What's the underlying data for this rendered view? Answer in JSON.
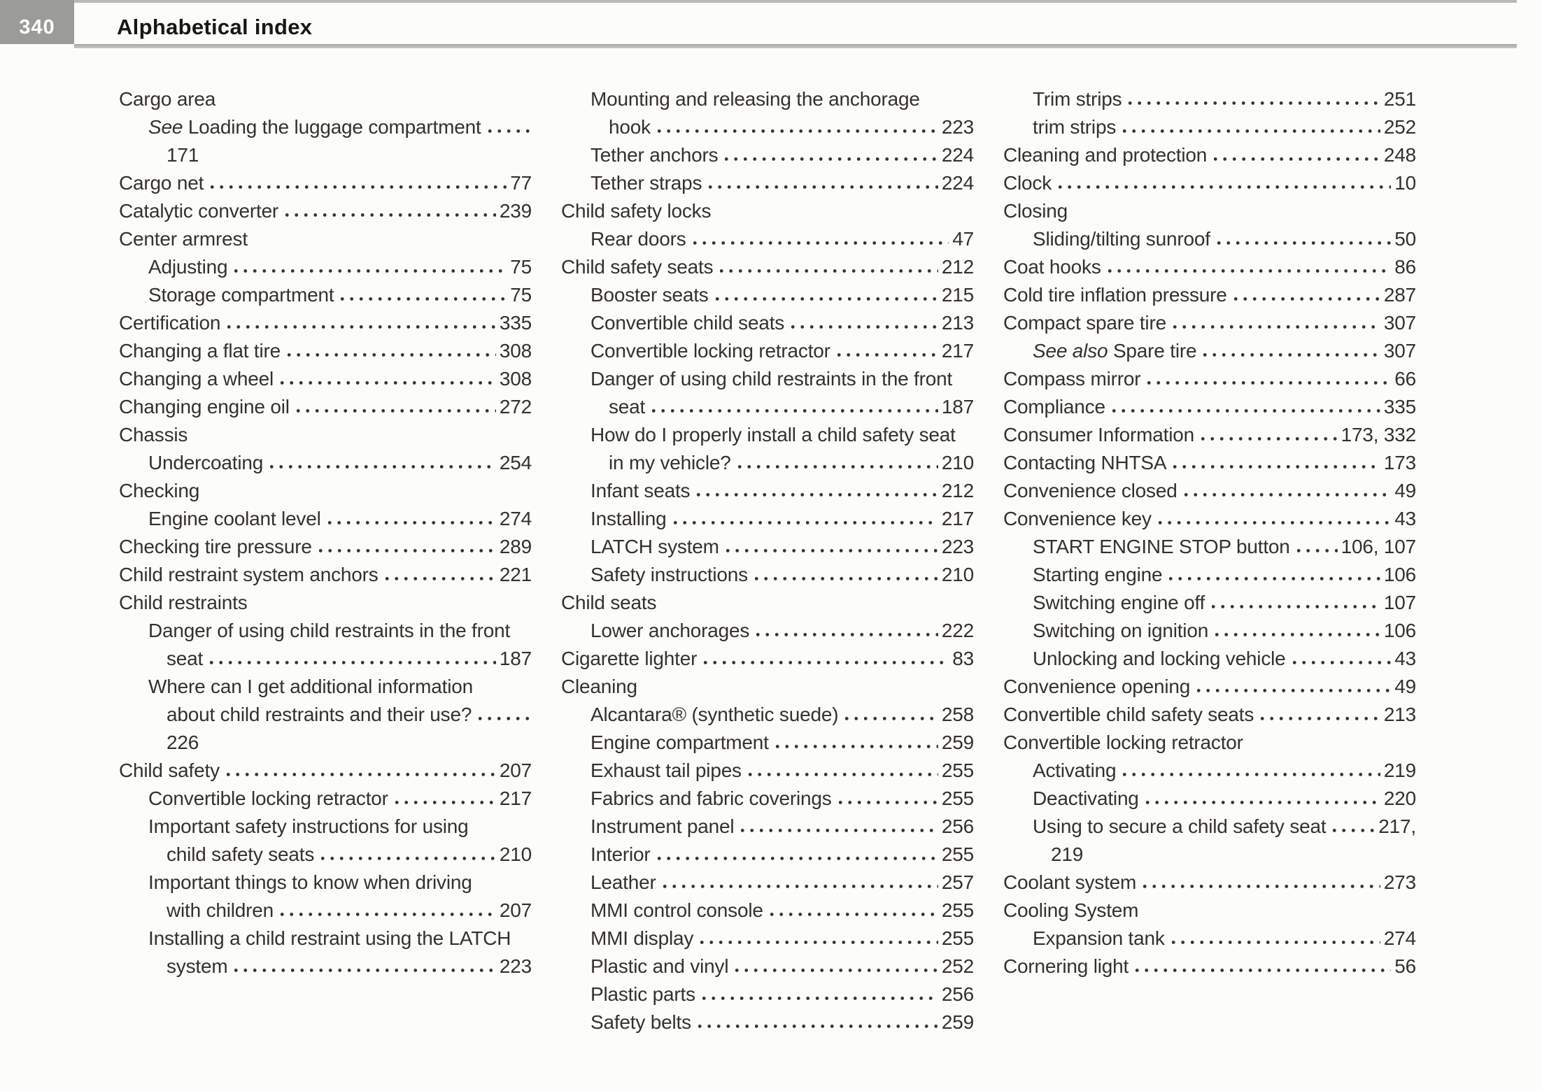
{
  "header": {
    "page_number": "340",
    "title": "Alphabetical index"
  },
  "colors": {
    "page_number_box": "#9b9b99",
    "header_rule": "#a5a5a3",
    "top_rule": "#b9b9b7",
    "text": "#35312d"
  },
  "index": {
    "columns": [
      {
        "lines": [
          {
            "indent": 0,
            "text": "Cargo area"
          },
          {
            "indent": 1,
            "italic": "See",
            "text": " Loading the luggage compartment",
            "dots": true
          },
          {
            "indent": 2,
            "text": "171"
          },
          {
            "indent": 0,
            "text": "Cargo net",
            "dots": true,
            "page": "77"
          },
          {
            "indent": 0,
            "text": "Catalytic converter",
            "dots": true,
            "page": "239"
          },
          {
            "indent": 0,
            "text": "Center armrest"
          },
          {
            "indent": 1,
            "text": "Adjusting",
            "dots": true,
            "page": "75"
          },
          {
            "indent": 1,
            "text": "Storage compartment",
            "dots": true,
            "page": "75"
          },
          {
            "indent": 0,
            "text": "Certification",
            "dots": true,
            "page": "335"
          },
          {
            "indent": 0,
            "text": "Changing a flat tire",
            "dots": true,
            "page": "308"
          },
          {
            "indent": 0,
            "text": "Changing a wheel",
            "dots": true,
            "page": "308"
          },
          {
            "indent": 0,
            "text": "Changing engine oil",
            "dots": true,
            "page": "272"
          },
          {
            "indent": 0,
            "text": "Chassis"
          },
          {
            "indent": 1,
            "text": "Undercoating",
            "dots": true,
            "page": "254"
          },
          {
            "indent": 0,
            "text": "Checking"
          },
          {
            "indent": 1,
            "text": "Engine coolant level",
            "dots": true,
            "page": "274"
          },
          {
            "indent": 0,
            "text": "Checking tire pressure",
            "dots": true,
            "page": "289"
          },
          {
            "indent": 0,
            "text": "Child restraint system anchors",
            "dots": true,
            "page": "221"
          },
          {
            "indent": 0,
            "text": "Child restraints"
          },
          {
            "indent": 1,
            "text": "Danger of using child restraints in the front"
          },
          {
            "indent": 2,
            "text": "seat",
            "dots": true,
            "page": "187"
          },
          {
            "indent": 1,
            "text": "Where can I get additional information"
          },
          {
            "indent": 2,
            "text": "about child restraints and their use?",
            "dots": true
          },
          {
            "indent": 2,
            "text": "226"
          },
          {
            "indent": 0,
            "text": "Child safety",
            "dots": true,
            "page": "207"
          },
          {
            "indent": 1,
            "text": "Convertible locking retractor",
            "dots": true,
            "page": "217"
          },
          {
            "indent": 1,
            "text": "Important safety instructions for using"
          },
          {
            "indent": 2,
            "text": "child safety seats",
            "dots": true,
            "page": "210"
          },
          {
            "indent": 1,
            "text": "Important things to know when driving"
          },
          {
            "indent": 2,
            "text": "with children",
            "dots": true,
            "page": "207"
          },
          {
            "indent": 1,
            "text": "Installing a child restraint using the LATCH"
          },
          {
            "indent": 2,
            "text": "system",
            "dots": true,
            "page": "223"
          }
        ]
      },
      {
        "lines": [
          {
            "indent": 1,
            "text": "Mounting and releasing the anchorage"
          },
          {
            "indent": 2,
            "text": "hook",
            "dots": true,
            "page": "223"
          },
          {
            "indent": 1,
            "text": "Tether anchors",
            "dots": true,
            "page": "224"
          },
          {
            "indent": 1,
            "text": "Tether straps",
            "dots": true,
            "page": "224"
          },
          {
            "indent": 0,
            "text": "Child safety locks"
          },
          {
            "indent": 1,
            "text": "Rear doors",
            "dots": true,
            "page": "47"
          },
          {
            "indent": 0,
            "text": "Child safety seats",
            "dots": true,
            "page": "212"
          },
          {
            "indent": 1,
            "text": "Booster seats",
            "dots": true,
            "page": "215"
          },
          {
            "indent": 1,
            "text": "Convertible child seats",
            "dots": true,
            "page": "213"
          },
          {
            "indent": 1,
            "text": "Convertible locking retractor",
            "dots": true,
            "page": "217"
          },
          {
            "indent": 1,
            "text": "Danger of using child restraints in the front"
          },
          {
            "indent": 2,
            "text": "seat",
            "dots": true,
            "page": "187"
          },
          {
            "indent": 1,
            "text": "How do I properly install a child safety seat"
          },
          {
            "indent": 2,
            "text": "in my vehicle?",
            "dots": true,
            "page": "210"
          },
          {
            "indent": 1,
            "text": "Infant seats",
            "dots": true,
            "page": "212"
          },
          {
            "indent": 1,
            "text": "Installing",
            "dots": true,
            "page": "217"
          },
          {
            "indent": 1,
            "text": "LATCH system",
            "dots": true,
            "page": "223"
          },
          {
            "indent": 1,
            "text": "Safety instructions",
            "dots": true,
            "page": "210"
          },
          {
            "indent": 0,
            "text": "Child seats"
          },
          {
            "indent": 1,
            "text": "Lower anchorages",
            "dots": true,
            "page": "222"
          },
          {
            "indent": 0,
            "text": "Cigarette lighter",
            "dots": true,
            "page": "83"
          },
          {
            "indent": 0,
            "text": "Cleaning"
          },
          {
            "indent": 1,
            "text": "Alcantara® (synthetic suede)",
            "dots": true,
            "page": "258"
          },
          {
            "indent": 1,
            "text": "Engine compartment",
            "dots": true,
            "page": "259"
          },
          {
            "indent": 1,
            "text": "Exhaust tail pipes",
            "dots": true,
            "page": "255"
          },
          {
            "indent": 1,
            "text": "Fabrics and fabric coverings",
            "dots": true,
            "page": "255"
          },
          {
            "indent": 1,
            "text": "Instrument panel",
            "dots": true,
            "page": "256"
          },
          {
            "indent": 1,
            "text": "Interior",
            "dots": true,
            "page": "255"
          },
          {
            "indent": 1,
            "text": "Leather",
            "dots": true,
            "page": "257"
          },
          {
            "indent": 1,
            "text": "MMI control console",
            "dots": true,
            "page": "255"
          },
          {
            "indent": 1,
            "text": "MMI display",
            "dots": true,
            "page": "255"
          },
          {
            "indent": 1,
            "text": "Plastic and vinyl",
            "dots": true,
            "page": "252"
          },
          {
            "indent": 1,
            "text": "Plastic parts",
            "dots": true,
            "page": "256"
          },
          {
            "indent": 1,
            "text": "Safety belts",
            "dots": true,
            "page": "259"
          }
        ]
      },
      {
        "lines": [
          {
            "indent": 1,
            "text": "Trim strips",
            "dots": true,
            "page": "251"
          },
          {
            "indent": 1,
            "text": "trim strips",
            "dots": true,
            "page": "252"
          },
          {
            "indent": 0,
            "text": "Cleaning and protection",
            "dots": true,
            "page": "248"
          },
          {
            "indent": 0,
            "text": "Clock",
            "dots": true,
            "page": "10"
          },
          {
            "indent": 0,
            "text": "Closing"
          },
          {
            "indent": 1,
            "text": "Sliding/tilting sunroof",
            "dots": true,
            "page": "50"
          },
          {
            "indent": 0,
            "text": "Coat hooks",
            "dots": true,
            "page": "86"
          },
          {
            "indent": 0,
            "text": "Cold tire inflation pressure",
            "dots": true,
            "page": "287"
          },
          {
            "indent": 0,
            "text": "Compact spare tire",
            "dots": true,
            "page": "307"
          },
          {
            "indent": 1,
            "italic": "See also",
            "text": " Spare tire",
            "dots": true,
            "page": "307"
          },
          {
            "indent": 0,
            "text": "Compass mirror",
            "dots": true,
            "page": "66"
          },
          {
            "indent": 0,
            "text": "Compliance",
            "dots": true,
            "page": "335"
          },
          {
            "indent": 0,
            "text": "Consumer Information",
            "dots": true,
            "page": "173, 332"
          },
          {
            "indent": 0,
            "text": "Contacting NHTSA",
            "dots": true,
            "page": "173"
          },
          {
            "indent": 0,
            "text": "Convenience closed",
            "dots": true,
            "page": "49"
          },
          {
            "indent": 0,
            "text": "Convenience key",
            "dots": true,
            "page": "43"
          },
          {
            "indent": 1,
            "text": "START ENGINE STOP button",
            "dots": true,
            "page": "106, 107"
          },
          {
            "indent": 1,
            "text": "Starting engine",
            "dots": true,
            "page": "106"
          },
          {
            "indent": 1,
            "text": "Switching engine off",
            "dots": true,
            "page": "107"
          },
          {
            "indent": 1,
            "text": "Switching on ignition",
            "dots": true,
            "page": "106"
          },
          {
            "indent": 1,
            "text": "Unlocking and locking vehicle",
            "dots": true,
            "page": "43"
          },
          {
            "indent": 0,
            "text": "Convenience opening",
            "dots": true,
            "page": "49"
          },
          {
            "indent": 0,
            "text": "Convertible child safety seats",
            "dots": true,
            "page": "213"
          },
          {
            "indent": 0,
            "text": "Convertible locking retractor"
          },
          {
            "indent": 1,
            "text": "Activating",
            "dots": true,
            "page": "219"
          },
          {
            "indent": 1,
            "text": "Deactivating",
            "dots": true,
            "page": "220"
          },
          {
            "indent": 1,
            "text": "Using to secure a child safety seat",
            "dots": true,
            "page": "217,"
          },
          {
            "indent": 2,
            "text": "219"
          },
          {
            "indent": 0,
            "text": "Coolant system",
            "dots": true,
            "page": "273"
          },
          {
            "indent": 0,
            "text": "Cooling System"
          },
          {
            "indent": 1,
            "text": "Expansion tank",
            "dots": true,
            "page": "274"
          },
          {
            "indent": 0,
            "text": "Cornering light",
            "dots": true,
            "page": "56"
          }
        ]
      }
    ]
  }
}
